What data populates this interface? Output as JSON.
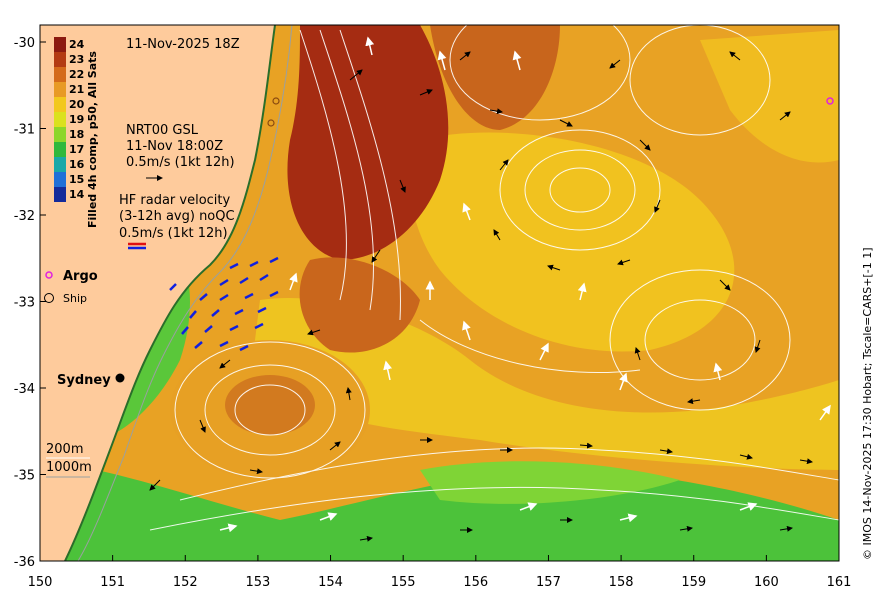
{
  "header": {
    "datetime": "11-Nov-2025 18Z"
  },
  "legend": {
    "colorbar_title": "Filled 4h comp, p50, All Sats",
    "colorbar_values": [
      "24",
      "23",
      "22",
      "21",
      "20",
      "19",
      "18",
      "17",
      "16",
      "15",
      "14"
    ],
    "colorbar_colors": [
      "#8b1a10",
      "#b33a12",
      "#d46a1a",
      "#e89a25",
      "#f2c81e",
      "#dbe11e",
      "#8ed62a",
      "#2fb83c",
      "#18a8a8",
      "#1f6fd8",
      "#142a9a"
    ],
    "altimetry": {
      "line1": "NRT00 GSL",
      "line2": "11-Nov 18:00Z",
      "line3": "0.5m/s (1kt 12h)"
    },
    "hf_radar": {
      "line1": "HF radar velocity",
      "line2": "(3-12h avg) noQC",
      "line3": "0.5m/s (1kt 12h)"
    },
    "argo_label": "Argo",
    "ship_label": "Ship",
    "depth_200": "200m",
    "depth_1000": "1000m",
    "city": "Sydney"
  },
  "credit": "© IMOS 14-Nov-2025 17:30 Hobart; Tscale=CARS+[-1 1]",
  "axes": {
    "x_ticks": [
      "150",
      "151",
      "152",
      "153",
      "154",
      "155",
      "156",
      "157",
      "158",
      "159",
      "160",
      "161"
    ],
    "y_ticks": [
      "-30",
      "-31",
      "-32",
      "-33",
      "-34",
      "-35",
      "-36"
    ]
  },
  "colors": {
    "land": "#fecb9c",
    "warm": "#e8951f",
    "hot": "#a02a12",
    "cool": "#48c43a",
    "velocity": "#000000",
    "ssh_contour": "#ffffff",
    "argo": "#e020e0",
    "hf_radar": "#1020e0"
  }
}
